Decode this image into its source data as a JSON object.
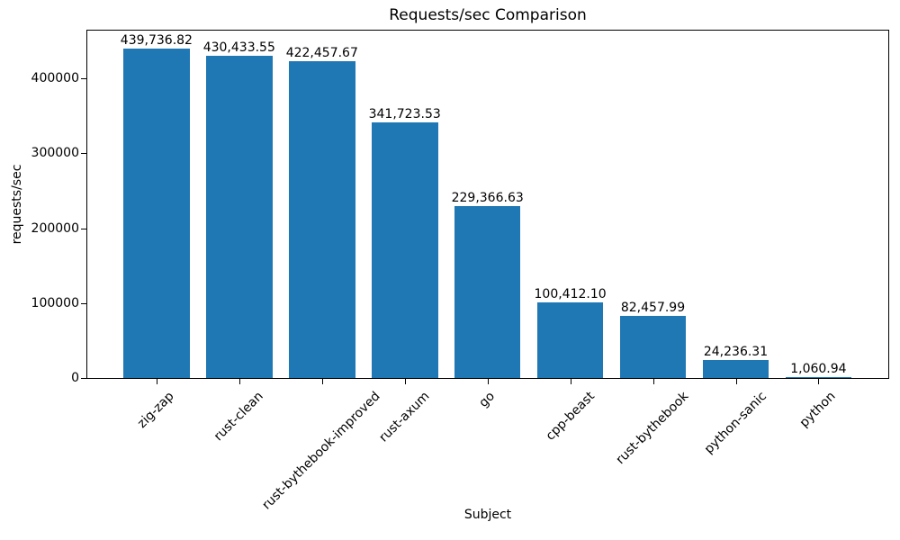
{
  "chart_data": {
    "type": "bar",
    "title": "Requests/sec Comparison",
    "xlabel": "Subject",
    "ylabel": "requests/sec",
    "categories": [
      "zig-zap",
      "rust-clean",
      "rust-bythebook-improved",
      "rust-axum",
      "go",
      "cpp-beast",
      "rust-bythebook",
      "python-sanic",
      "python"
    ],
    "values": [
      439736.82,
      430433.55,
      422457.67,
      341723.53,
      229366.63,
      100412.1,
      82457.99,
      24236.31,
      1060.94
    ],
    "bar_labels": [
      "439,736.82",
      "430,433.55",
      "422,457.67",
      "341,723.53",
      "229,366.63",
      "100,412.10",
      "82,457.99",
      "24,236.31",
      "1,060.94"
    ],
    "ylim": [
      0,
      463600
    ],
    "yticks": [
      0,
      100000,
      200000,
      300000,
      400000
    ],
    "ytick_labels": [
      "0",
      "100000",
      "200000",
      "300000",
      "400000"
    ],
    "bar_color": "#1f77b4",
    "axis_color": "#000000",
    "grid": false,
    "legend": null
  }
}
